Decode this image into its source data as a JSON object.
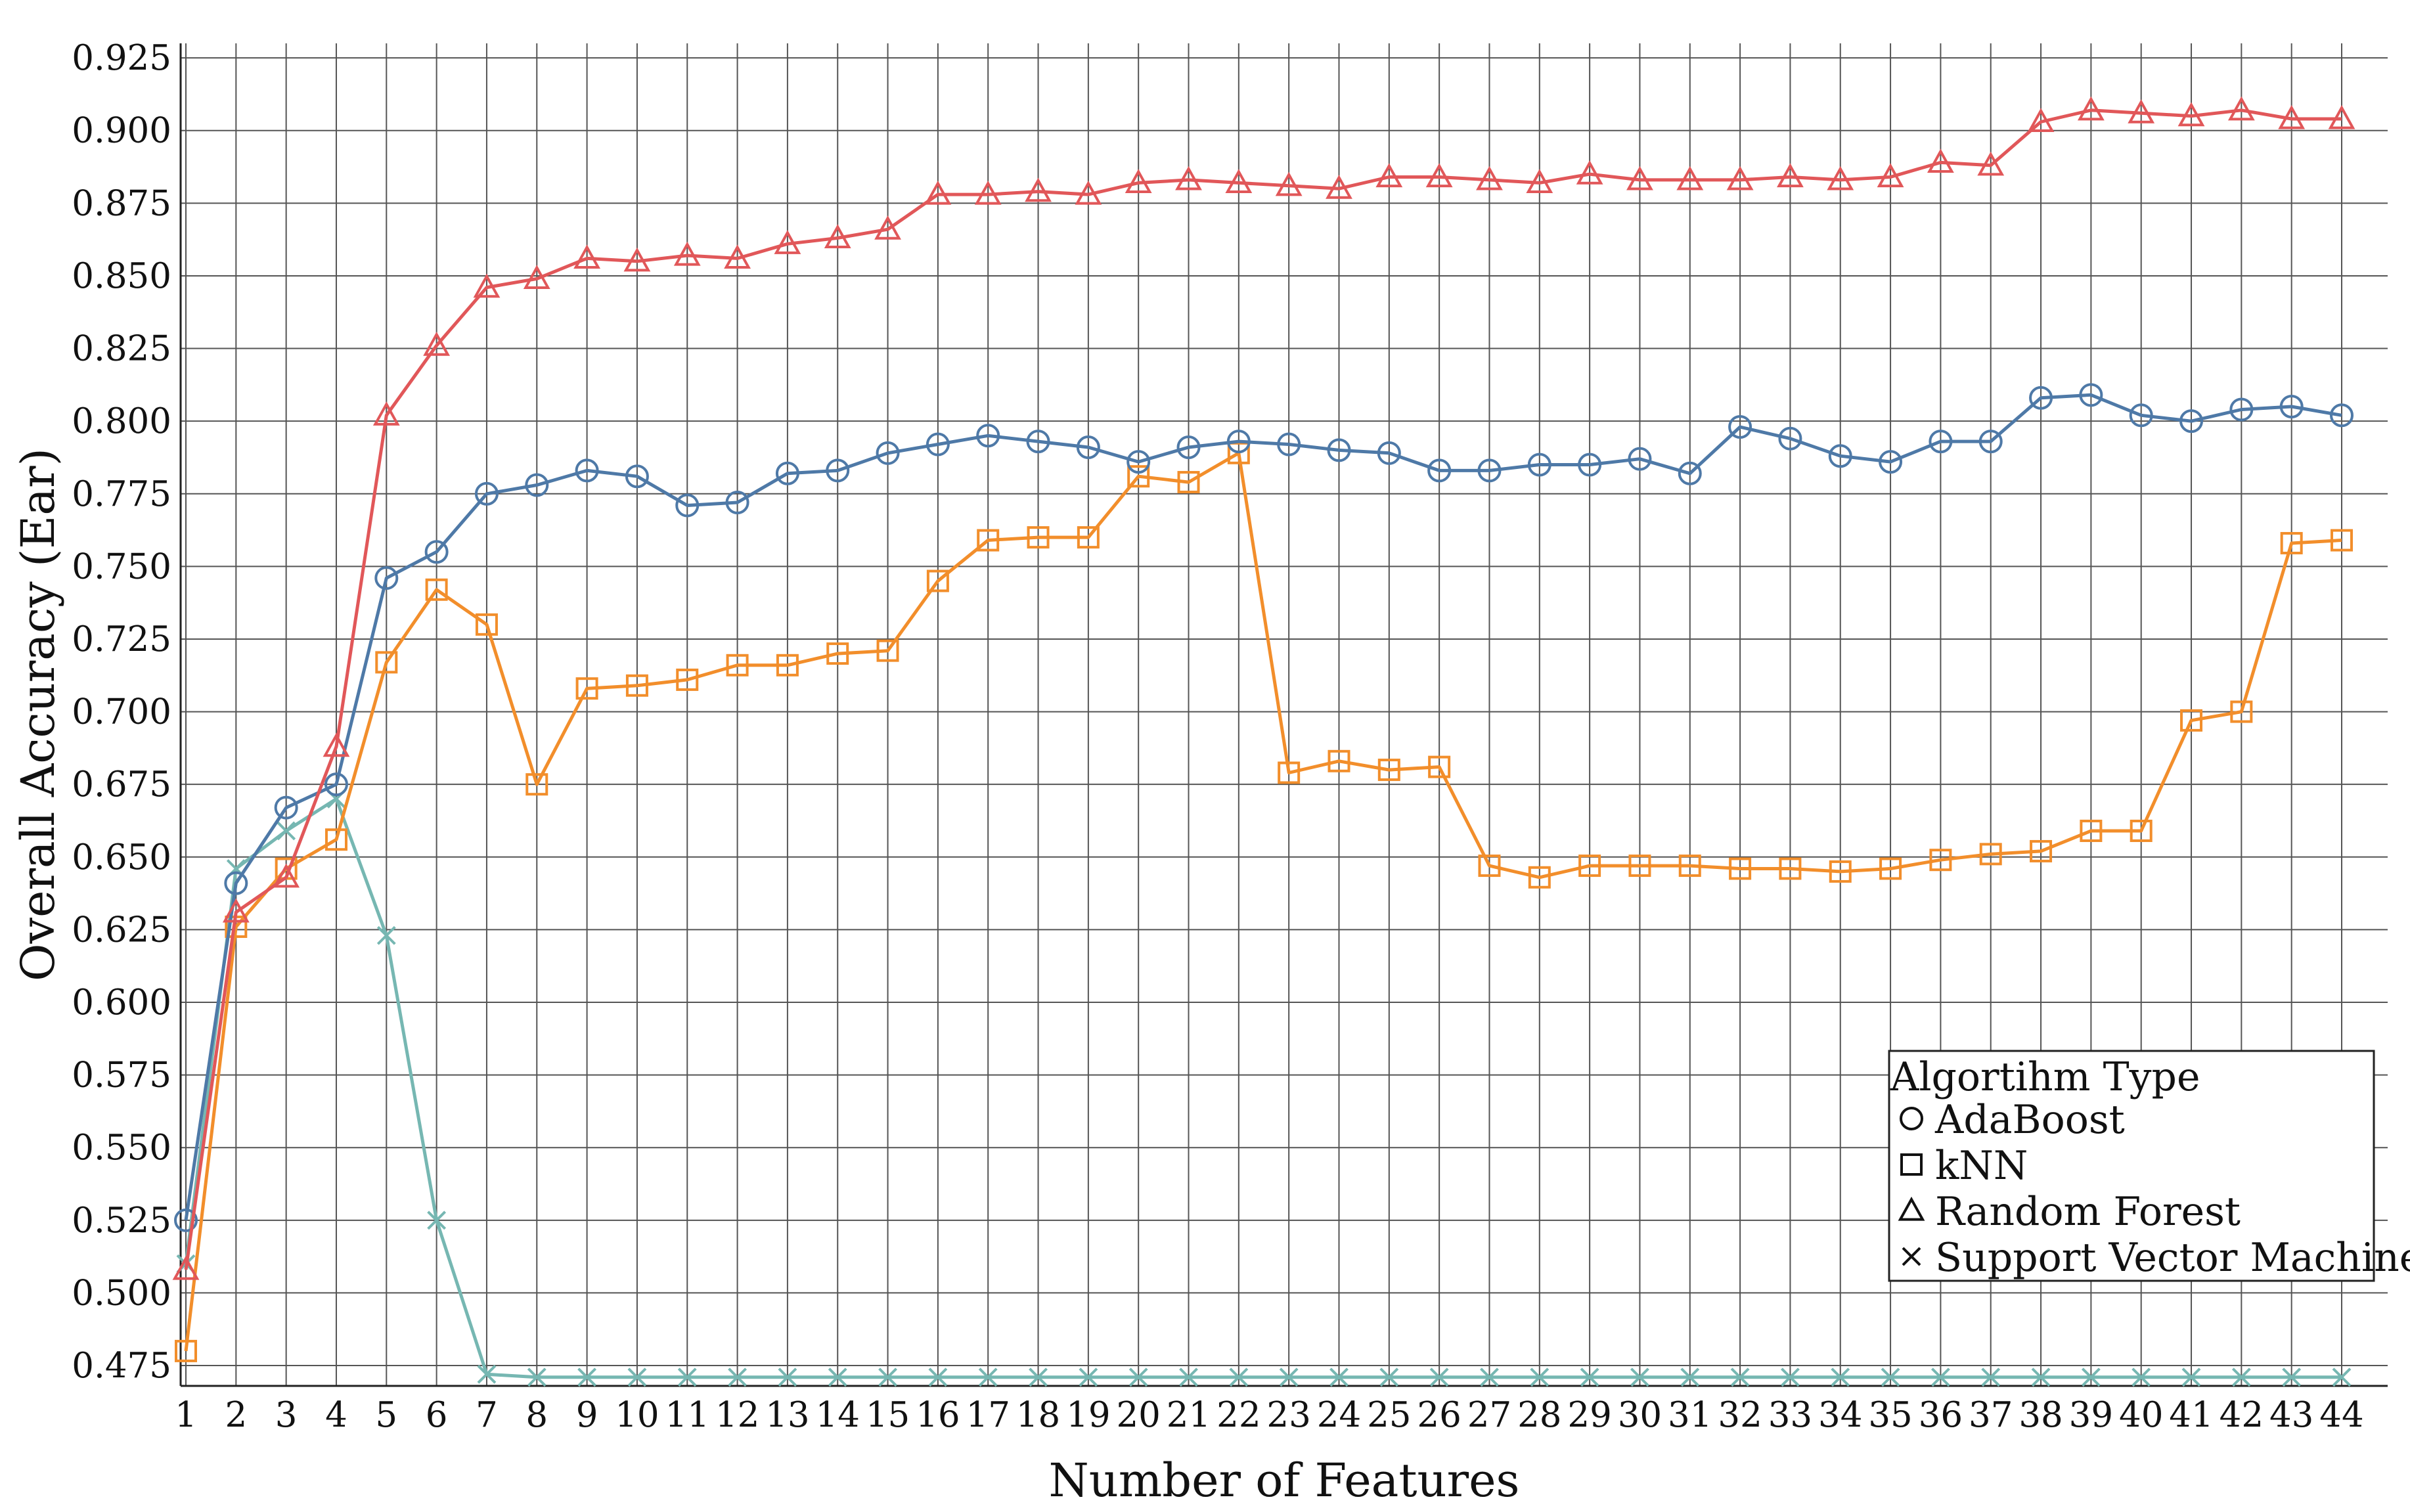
{
  "chart_data": {
    "type": "line",
    "title": "",
    "xlabel": "Number of Features",
    "ylabel": "Overall Accuracy (Ear)",
    "x": [
      1,
      2,
      3,
      4,
      5,
      6,
      7,
      8,
      9,
      10,
      11,
      12,
      13,
      14,
      15,
      16,
      17,
      18,
      19,
      20,
      21,
      22,
      23,
      24,
      25,
      26,
      27,
      28,
      29,
      30,
      31,
      32,
      33,
      34,
      35,
      36,
      37,
      38,
      39,
      40,
      41,
      42,
      43,
      44
    ],
    "xlim": [
      1,
      44
    ],
    "ylim": [
      0.468,
      0.93
    ],
    "yticks": [
      "0.475",
      "0.500",
      "0.525",
      "0.550",
      "0.575",
      "0.600",
      "0.625",
      "0.650",
      "0.675",
      "0.700",
      "0.725",
      "0.750",
      "0.775",
      "0.800",
      "0.825",
      "0.850",
      "0.875",
      "0.900",
      "0.925"
    ],
    "xticks": [
      "1",
      "2",
      "3",
      "4",
      "5",
      "6",
      "7",
      "8",
      "9",
      "10",
      "11",
      "12",
      "13",
      "14",
      "15",
      "16",
      "17",
      "18",
      "19",
      "20",
      "21",
      "22",
      "23",
      "24",
      "25",
      "26",
      "27",
      "28",
      "29",
      "30",
      "31",
      "32",
      "33",
      "34",
      "35",
      "36",
      "37",
      "38",
      "39",
      "40",
      "41",
      "42",
      "43",
      "44"
    ],
    "grid": true,
    "legend": {
      "title": "Algortihm Type",
      "placement": "bottom-right"
    },
    "series": [
      {
        "name": "AdaBoost",
        "marker": "circle",
        "color": "#4e79a7",
        "values": [
          0.525,
          0.641,
          0.667,
          0.675,
          0.746,
          0.755,
          0.775,
          0.778,
          0.783,
          0.781,
          0.771,
          0.772,
          0.782,
          0.783,
          0.789,
          0.792,
          0.795,
          0.793,
          0.791,
          0.786,
          0.791,
          0.793,
          0.792,
          0.79,
          0.789,
          0.783,
          0.783,
          0.785,
          0.785,
          0.787,
          0.782,
          0.798,
          0.794,
          0.788,
          0.786,
          0.793,
          0.793,
          0.808,
          0.809,
          0.802,
          0.8,
          0.804,
          0.805,
          0.802
        ]
      },
      {
        "name": "kNN",
        "marker": "square",
        "color": "#f28e2b",
        "values": [
          0.48,
          0.626,
          0.646,
          0.656,
          0.717,
          0.742,
          0.73,
          0.675,
          0.708,
          0.709,
          0.711,
          0.716,
          0.716,
          0.72,
          0.721,
          0.745,
          0.759,
          0.76,
          0.76,
          0.781,
          0.779,
          0.789,
          0.679,
          0.683,
          0.68,
          0.681,
          0.647,
          0.643,
          0.647,
          0.647,
          0.647,
          0.646,
          0.646,
          0.645,
          0.646,
          0.649,
          0.651,
          0.652,
          0.659,
          0.659,
          0.697,
          0.7,
          0.758,
          0.759
        ]
      },
      {
        "name": "Random Forest",
        "marker": "triangle",
        "color": "#e15759",
        "values": [
          0.508,
          0.631,
          0.643,
          0.688,
          0.802,
          0.826,
          0.846,
          0.849,
          0.856,
          0.855,
          0.857,
          0.856,
          0.861,
          0.863,
          0.866,
          0.878,
          0.878,
          0.879,
          0.878,
          0.882,
          0.883,
          0.882,
          0.881,
          0.88,
          0.884,
          0.884,
          0.883,
          0.882,
          0.885,
          0.883,
          0.883,
          0.883,
          0.884,
          0.883,
          0.884,
          0.889,
          0.888,
          0.903,
          0.907,
          0.906,
          0.905,
          0.907,
          0.904,
          0.904
        ]
      },
      {
        "name": "Support Vector Machine",
        "marker": "x",
        "color": "#76b7b2",
        "values": [
          0.51,
          0.646,
          0.659,
          0.67,
          0.623,
          0.525,
          0.472,
          0.471,
          0.471,
          0.471,
          0.471,
          0.471,
          0.471,
          0.471,
          0.471,
          0.471,
          0.471,
          0.471,
          0.471,
          0.471,
          0.471,
          0.471,
          0.471,
          0.471,
          0.471,
          0.471,
          0.471,
          0.471,
          0.471,
          0.471,
          0.471,
          0.471,
          0.471,
          0.471,
          0.471,
          0.471,
          0.471,
          0.471,
          0.471,
          0.471,
          0.471,
          0.471,
          0.471,
          0.471
        ]
      }
    ]
  }
}
